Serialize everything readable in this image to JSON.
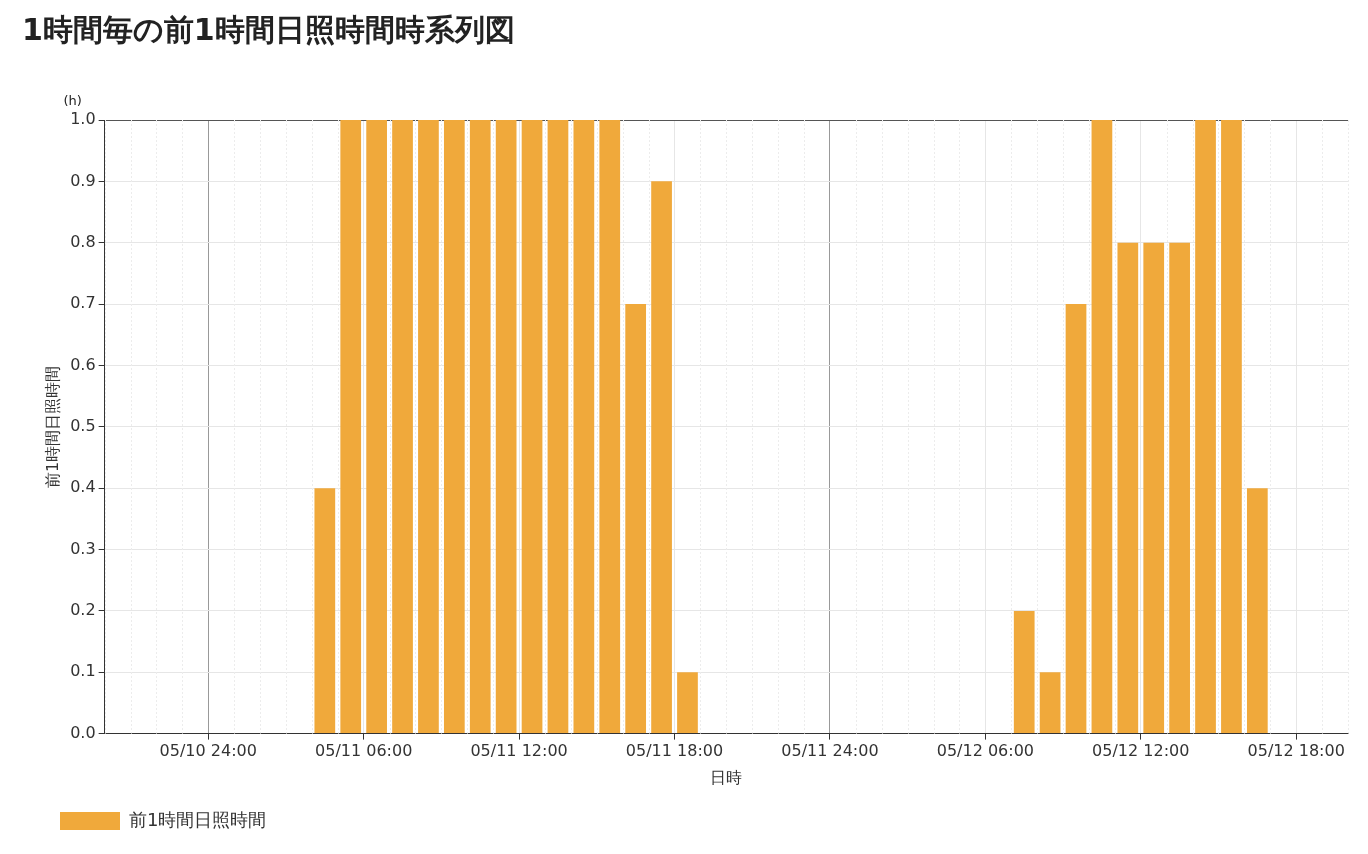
{
  "chart_data": {
    "type": "bar",
    "title": "1時間毎の前1時間日照時間時系列図",
    "xlabel": "日時",
    "ylabel": "前1時間日照時間",
    "annotations": [
      "(h)"
    ],
    "x": [
      "--05-11T04:30",
      "--05-11T05:30",
      "--05-11T06:30",
      "--05-11T07:30",
      "--05-11T08:30",
      "--05-11T09:30",
      "--05-11T10:30",
      "--05-11T11:30",
      "--05-11T12:30",
      "--05-11T13:30",
      "--05-11T14:30",
      "--05-11T15:30",
      "--05-11T16:30",
      "--05-11T17:30",
      "--05-11T18:30",
      "--05-12T07:30",
      "--05-12T08:30",
      "--05-12T09:30",
      "--05-12T10:30",
      "--05-12T11:30",
      "--05-12T12:30",
      "--05-12T13:30",
      "--05-12T14:30",
      "--05-12T15:30",
      "--05-12T16:30"
    ],
    "series": [
      {
        "name": "前1時間日照時間",
        "color": "#f0a93b",
        "values": [
          0.4,
          1.0,
          1.0,
          1.0,
          1.0,
          1.0,
          1.0,
          1.0,
          1.0,
          1.0,
          1.0,
          1.0,
          0.7,
          0.9,
          0.1,
          0.2,
          0.1,
          0.7,
          1.0,
          0.8,
          0.8,
          0.8,
          1.0,
          1.0,
          0.4
        ]
      }
    ],
    "xlim": [
      "--05-10T20:00",
      "--05-12T20:00"
    ],
    "xticks": [
      {
        "value": "--05-11T00:00",
        "label": "05/10 24:00"
      },
      {
        "value": "--05-11T06:00",
        "label": "05/11 06:00"
      },
      {
        "value": "--05-11T12:00",
        "label": "05/11 12:00"
      },
      {
        "value": "--05-11T18:00",
        "label": "05/11 18:00"
      },
      {
        "value": "--05-12T00:00",
        "label": "05/11 24:00"
      },
      {
        "value": "--05-12T06:00",
        "label": "05/12 06:00"
      },
      {
        "value": "--05-12T12:00",
        "label": "05/12 12:00"
      },
      {
        "value": "--05-12T18:00",
        "label": "05/12 18:00"
      }
    ],
    "ylim": [
      0,
      1.0
    ],
    "yticks": [
      {
        "value": 0,
        "label": "0.0"
      },
      {
        "value": 0.1,
        "label": "0.1"
      },
      {
        "value": 0.2,
        "label": "0.2"
      },
      {
        "value": 0.3,
        "label": "0.3"
      },
      {
        "value": 0.4,
        "label": "0.4"
      },
      {
        "value": 0.5,
        "label": "0.5"
      },
      {
        "value": 0.6,
        "label": "0.6"
      },
      {
        "value": 0.7,
        "label": "0.7"
      },
      {
        "value": 0.8,
        "label": "0.8"
      },
      {
        "value": 0.9,
        "label": "0.9"
      },
      {
        "value": 1.0,
        "label": "1.0"
      }
    ],
    "grid": true,
    "legend": "bottom left"
  }
}
